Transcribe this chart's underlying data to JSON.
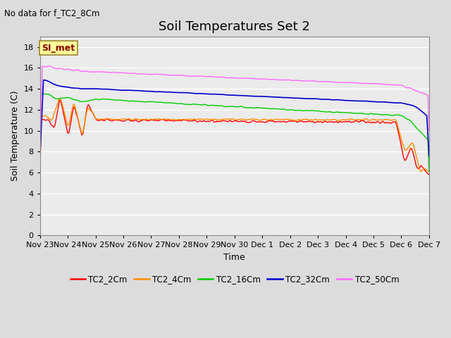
{
  "title": "Soil Temperatures Set 2",
  "subtitle": "No data for f_TC2_8Cm",
  "xlabel": "Time",
  "ylabel": "Soil Temperature (C)",
  "ylim": [
    0,
    19
  ],
  "yticks": [
    0,
    2,
    4,
    6,
    8,
    10,
    12,
    14,
    16,
    18
  ],
  "xtick_labels": [
    "Nov 23",
    "Nov 24",
    "Nov 25",
    "Nov 26",
    "Nov 27",
    "Nov 28",
    "Nov 29",
    "Nov 30",
    "Dec 1",
    "Dec 2",
    "Dec 3",
    "Dec 4",
    "Dec 5",
    "Dec 6",
    "Dec 7"
  ],
  "annotation_text": "SI_met",
  "annotation_color": "#8B0000",
  "annotation_bg": "#FFFF99",
  "annotation_border": "#9B8530",
  "colors": {
    "TC2_2Cm": "#FF0000",
    "TC2_4Cm": "#FF8C00",
    "TC2_16Cm": "#00CC00",
    "TC2_32Cm": "#0000CC",
    "TC2_50Cm": "#FF66FF"
  },
  "legend_labels": [
    "TC2_2Cm",
    "TC2_4Cm",
    "TC2_16Cm",
    "TC2_32Cm",
    "TC2_50Cm"
  ],
  "background_color": "#DCDCDC",
  "plot_bg": "#EBEBEB",
  "grid_color": "#FFFFFF",
  "title_fontsize": 13,
  "label_fontsize": 9,
  "tick_fontsize": 8
}
